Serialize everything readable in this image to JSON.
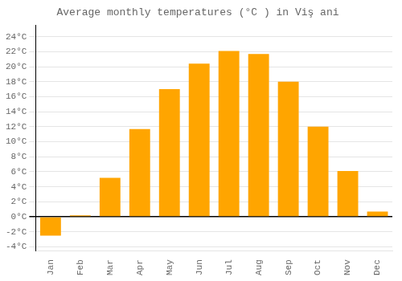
{
  "chart_data": {
    "type": "bar",
    "title": "Average monthly temperatures (°C ) in Viş ani",
    "categories": [
      "Jan",
      "Feb",
      "Mar",
      "Apr",
      "May",
      "Jun",
      "Jul",
      "Aug",
      "Sep",
      "Oct",
      "Nov",
      "Dec"
    ],
    "values": [
      -2.5,
      0.2,
      5.2,
      11.7,
      17.0,
      20.4,
      22.1,
      21.7,
      18.0,
      12.0,
      6.1,
      0.7
    ],
    "color": "#FFA500",
    "ylim": [
      -4.5,
      25.5
    ],
    "yticks": [
      {
        "value": -4,
        "label": "-4°C"
      },
      {
        "value": -2,
        "label": "-2°C"
      },
      {
        "value": 0,
        "label": "0°C"
      },
      {
        "value": 2,
        "label": "2°C"
      },
      {
        "value": 4,
        "label": "4°C"
      },
      {
        "value": 6,
        "label": "6°C"
      },
      {
        "value": 8,
        "label": "8°C"
      },
      {
        "value": 10,
        "label": "10°C"
      },
      {
        "value": 12,
        "label": "12°C"
      },
      {
        "value": 14,
        "label": "14°C"
      },
      {
        "value": 16,
        "label": "16°C"
      },
      {
        "value": 18,
        "label": "18°C"
      },
      {
        "value": 20,
        "label": "20°C"
      },
      {
        "value": 22,
        "label": "22°C"
      },
      {
        "value": 24,
        "label": "24°C"
      }
    ],
    "grid": true
  }
}
